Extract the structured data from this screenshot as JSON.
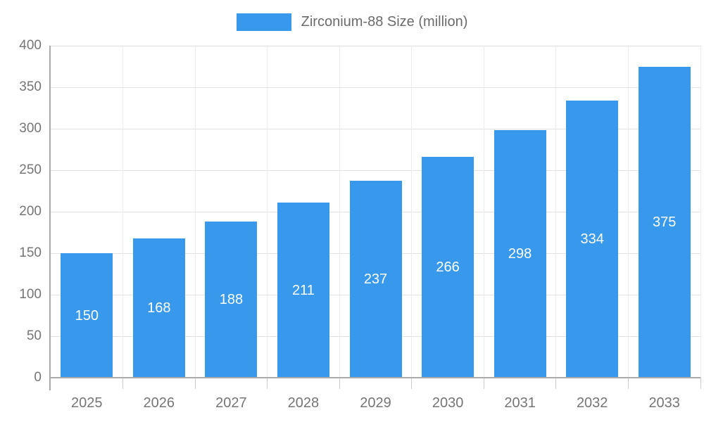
{
  "chart_data": {
    "type": "bar",
    "title": "",
    "legend": "Zirconium-88 Size (million)",
    "legend_position": "top-center",
    "categories": [
      "2025",
      "2026",
      "2027",
      "2028",
      "2029",
      "2030",
      "2031",
      "2032",
      "2033"
    ],
    "values": [
      150,
      168,
      188,
      211,
      237,
      266,
      298,
      334,
      375
    ],
    "xlabel": "",
    "ylabel": "",
    "ylim": [
      0,
      400
    ],
    "yticks": [
      0,
      50,
      100,
      150,
      200,
      250,
      300,
      350,
      400
    ],
    "grid": true,
    "bar_value_labels_inside": true,
    "colors": {
      "bar": "#3899ec",
      "grid_h": "#e2e2e2",
      "grid_v": "#ececec",
      "axis": "#ababab",
      "tick_mark": "#cccccc",
      "axis_text": "#757575",
      "value_label": "#ffffff",
      "legend_text": "#6b6b6b",
      "background": "#ffffff"
    }
  }
}
